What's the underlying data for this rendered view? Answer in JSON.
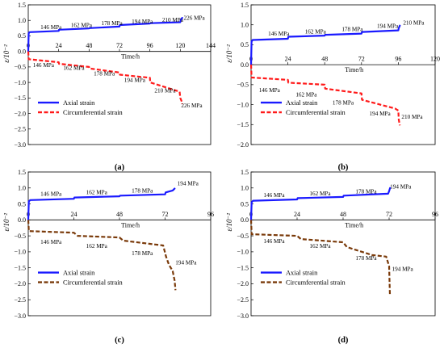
{
  "chart_data": [
    {
      "type": "line",
      "panel_label": "(a)",
      "xlabel": "Time/h",
      "ylabel": "ε/10⁻²",
      "xlim": [
        0,
        144
      ],
      "ylim": [
        -3.0,
        1.5
      ],
      "x_ticks": [
        0,
        24,
        48,
        72,
        96,
        120,
        144
      ],
      "y_ticks": [
        1.5,
        1.0,
        0.5,
        0.0,
        -0.5,
        -1.0,
        -1.5,
        -2.0,
        -2.5,
        -3.0
      ],
      "legend": "lower-left",
      "series": [
        {
          "name": "Axial strain",
          "color": "#1a1aff",
          "style": "solid",
          "x": [
            0,
            0.3,
            1,
            24,
            24.3,
            48,
            48.3,
            72,
            72.3,
            96,
            96.3,
            120,
            120.3,
            121,
            121.5
          ],
          "y": [
            0,
            0.58,
            0.62,
            0.66,
            0.7,
            0.74,
            0.75,
            0.8,
            0.85,
            0.9,
            0.91,
            0.94,
            1.0,
            1.05,
            1.08
          ]
        },
        {
          "name": "Circumferential strain",
          "color": "#ff1a1a",
          "style": "dashed",
          "x": [
            0,
            0.3,
            24,
            24.3,
            48,
            48.3,
            72,
            72.3,
            96,
            96.3,
            119.5,
            120,
            121,
            121.5
          ],
          "y": [
            0,
            -0.25,
            -0.35,
            -0.4,
            -0.5,
            -0.55,
            -0.68,
            -0.75,
            -0.85,
            -1.0,
            -1.3,
            -1.5,
            -1.6,
            -1.7
          ]
        }
      ],
      "annotations": [
        {
          "text": "146 MPa",
          "x": 18,
          "y": 0.72
        },
        {
          "text": "162 MPa",
          "x": 42,
          "y": 0.78
        },
        {
          "text": "178 MPa",
          "x": 66,
          "y": 0.85
        },
        {
          "text": "194 MPa",
          "x": 90,
          "y": 0.9
        },
        {
          "text": "210 MPa",
          "x": 114,
          "y": 0.96
        },
        {
          "text": "226 MPa",
          "x": 131,
          "y": 1.02
        },
        {
          "text": "146 MPa",
          "x": 12,
          "y": -0.5
        },
        {
          "text": "162 MPa",
          "x": 36,
          "y": -0.6
        },
        {
          "text": "178 MPa",
          "x": 60,
          "y": -0.78
        },
        {
          "text": "194 MPa",
          "x": 84,
          "y": -0.98
        },
        {
          "text": "210 MPa",
          "x": 108,
          "y": -1.32
        },
        {
          "text": "226 MPa",
          "x": 129,
          "y": -1.8
        }
      ]
    },
    {
      "type": "line",
      "panel_label": "(b)",
      "xlabel": "Time/h",
      "ylabel": "ε/10⁻²",
      "xlim": [
        0,
        120
      ],
      "ylim": [
        -2.0,
        1.5
      ],
      "x_ticks": [
        0,
        24,
        48,
        72,
        96,
        120
      ],
      "y_ticks": [
        1.5,
        1.0,
        0.5,
        0.0,
        -0.5,
        -1.0,
        -1.5,
        -2.0
      ],
      "legend": "lower-left",
      "series": [
        {
          "name": "Axial strain",
          "color": "#1a1aff",
          "style": "solid",
          "x": [
            0,
            0.3,
            1,
            24,
            24.3,
            48,
            48.3,
            72,
            72.3,
            96,
            96.3,
            97
          ],
          "y": [
            0,
            0.58,
            0.62,
            0.65,
            0.7,
            0.73,
            0.75,
            0.78,
            0.82,
            0.86,
            0.92,
            0.98
          ]
        },
        {
          "name": "Circumferential strain",
          "color": "#ff1a1a",
          "style": "dashed",
          "x": [
            0,
            0.3,
            24,
            24.3,
            48,
            48.3,
            72,
            72.3,
            94,
            96,
            96.3,
            97
          ],
          "y": [
            0,
            -0.32,
            -0.38,
            -0.45,
            -0.5,
            -0.6,
            -0.72,
            -0.88,
            -1.1,
            -1.15,
            -1.38,
            -1.52
          ]
        }
      ],
      "annotations": [
        {
          "text": "146 MPa",
          "x": 18,
          "y": 0.73
        },
        {
          "text": "162 MPa",
          "x": 42,
          "y": 0.78
        },
        {
          "text": "178 MPa",
          "x": 66,
          "y": 0.84
        },
        {
          "text": "194 MPa",
          "x": 89,
          "y": 0.92
        },
        {
          "text": "210 MPa",
          "x": 106,
          "y": 1.0
        },
        {
          "text": "146 MPa",
          "x": 12,
          "y": -0.68
        },
        {
          "text": "162 MPa",
          "x": 36,
          "y": -0.8
        },
        {
          "text": "178 MPa",
          "x": 60,
          "y": -1.0
        },
        {
          "text": "194 MPa",
          "x": 84,
          "y": -1.27
        },
        {
          "text": "210 MPa",
          "x": 105,
          "y": -1.35
        }
      ]
    },
    {
      "type": "line",
      "panel_label": "(c)",
      "xlabel": "Time/h",
      "ylabel": "ε/10⁻²",
      "xlim": [
        0,
        96
      ],
      "ylim": [
        -3.0,
        1.5
      ],
      "x_ticks": [
        0,
        24,
        48,
        72,
        96
      ],
      "y_ticks": [
        1.5,
        1.0,
        0.5,
        0.0,
        -0.5,
        -1.0,
        -1.5,
        -2.0,
        -2.5,
        -3.0
      ],
      "legend": "lower-left",
      "series": [
        {
          "name": "Axial strain",
          "color": "#1a1aff",
          "style": "solid",
          "x": [
            0,
            0.3,
            1,
            24,
            24.3,
            48,
            48.3,
            72,
            72.3,
            76,
            77
          ],
          "y": [
            0,
            0.58,
            0.62,
            0.66,
            0.7,
            0.74,
            0.76,
            0.8,
            0.86,
            0.92,
            0.98
          ]
        },
        {
          "name": "Circumferential strain",
          "color": "#7a3a0a",
          "style": "dashed",
          "x": [
            0,
            0.3,
            24,
            26,
            48,
            50,
            71,
            72.5,
            74,
            76,
            77,
            77.5
          ],
          "y": [
            0,
            -0.35,
            -0.4,
            -0.5,
            -0.55,
            -0.65,
            -0.8,
            -1.15,
            -1.4,
            -1.6,
            -1.9,
            -2.2
          ]
        }
      ],
      "annotations": [
        {
          "text": "146 MPa",
          "x": 12,
          "y": 0.75
        },
        {
          "text": "162 MPa",
          "x": 36,
          "y": 0.8
        },
        {
          "text": "178 MPa",
          "x": 60,
          "y": 0.86
        },
        {
          "text": "194 MPa",
          "x": 84,
          "y": 1.08
        },
        {
          "text": "146 MPa",
          "x": 12,
          "y": -0.75
        },
        {
          "text": "162 MPa",
          "x": 36,
          "y": -0.88
        },
        {
          "text": "178 MPa",
          "x": 60,
          "y": -1.1
        },
        {
          "text": "194 MPa",
          "x": 83,
          "y": -1.4
        }
      ]
    },
    {
      "type": "line",
      "panel_label": "(d)",
      "xlabel": "Time/h",
      "ylabel": "ε/10⁻²",
      "xlim": [
        0,
        96
      ],
      "ylim": [
        -3.0,
        1.5
      ],
      "x_ticks": [
        0,
        24,
        48,
        72,
        96
      ],
      "y_ticks": [
        1.5,
        1.0,
        0.5,
        0.0,
        -0.5,
        -1.0,
        -1.5,
        -2.0,
        -2.5,
        -3.0
      ],
      "legend": "lower-left",
      "series": [
        {
          "name": "Axial strain",
          "color": "#1a1aff",
          "style": "solid",
          "x": [
            0,
            0.3,
            1,
            24,
            24.3,
            48,
            48.3,
            71.5,
            72,
            72.5
          ],
          "y": [
            0,
            0.55,
            0.6,
            0.64,
            0.68,
            0.72,
            0.76,
            0.82,
            0.9,
            1.0
          ]
        },
        {
          "name": "Circumferential strain",
          "color": "#7a3a0a",
          "style": "dashed",
          "x": [
            0,
            0.3,
            24,
            26,
            48,
            50,
            63,
            70.5,
            72,
            72.2,
            72.4
          ],
          "y": [
            0,
            -0.45,
            -0.5,
            -0.6,
            -0.7,
            -0.85,
            -1.1,
            -1.15,
            -1.45,
            -1.9,
            -2.35
          ]
        }
      ],
      "annotations": [
        {
          "text": "146 MPa",
          "x": 12,
          "y": 0.72
        },
        {
          "text": "162 MPa",
          "x": 36,
          "y": 0.77
        },
        {
          "text": "178 MPa",
          "x": 60,
          "y": 0.83
        },
        {
          "text": "194 MPa",
          "x": 78,
          "y": 0.98
        },
        {
          "text": "146 MPa",
          "x": 12,
          "y": -0.73
        },
        {
          "text": "162 MPa",
          "x": 36,
          "y": -0.88
        },
        {
          "text": "178 MPa",
          "x": 60,
          "y": -1.25
        },
        {
          "text": "194 MPa",
          "x": 79,
          "y": -1.6
        }
      ]
    }
  ]
}
